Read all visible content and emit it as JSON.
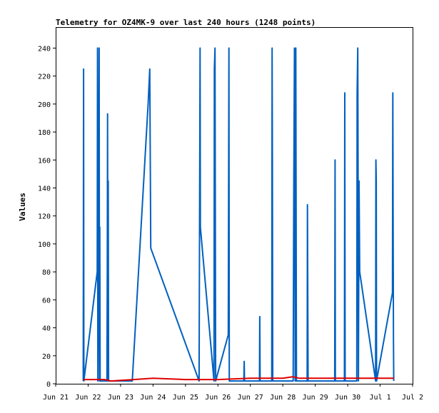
{
  "chart_data": {
    "type": "line",
    "title": "Telemetry for OZ4MK-9 over last 240 hours (1248 points)",
    "ylabel": "Values",
    "xlabel": "",
    "ylim": [
      0,
      255
    ],
    "xlim": [
      0,
      11
    ],
    "yticks": [
      0,
      20,
      40,
      60,
      80,
      100,
      120,
      140,
      160,
      180,
      200,
      220,
      240
    ],
    "xticks": [
      {
        "x": 0,
        "label": "Jun 21"
      },
      {
        "x": 1,
        "label": "Jun 22"
      },
      {
        "x": 2,
        "label": "Jun 23"
      },
      {
        "x": 3,
        "label": "Jun 24"
      },
      {
        "x": 4,
        "label": "Jun 25"
      },
      {
        "x": 5,
        "label": "Jun 26"
      },
      {
        "x": 6,
        "label": "Jun 27"
      },
      {
        "x": 7,
        "label": "Jun 28"
      },
      {
        "x": 8,
        "label": "Jun 29"
      },
      {
        "x": 9,
        "label": "Jun 30"
      },
      {
        "x": 10,
        "label": "Jul 1"
      },
      {
        "x": 11,
        "label": "Jul 2"
      }
    ],
    "grid": false,
    "series": [
      {
        "color": "#0060c0",
        "points": [
          [
            0.85,
            2
          ],
          [
            0.86,
            225
          ],
          [
            0.87,
            2
          ],
          [
            1.28,
            80
          ],
          [
            1.29,
            240
          ],
          [
            1.3,
            2
          ],
          [
            1.32,
            97
          ],
          [
            1.34,
            240
          ],
          [
            1.35,
            2
          ],
          [
            1.36,
            112
          ],
          [
            1.37,
            2
          ],
          [
            1.58,
            2
          ],
          [
            1.59,
            80
          ],
          [
            1.6,
            193
          ],
          [
            1.61,
            2
          ],
          [
            1.62,
            145
          ],
          [
            1.63,
            2
          ],
          [
            2.35,
            2
          ],
          [
            2.36,
            2
          ],
          [
            2.85,
            200
          ],
          [
            2.9,
            225
          ],
          [
            2.92,
            145
          ],
          [
            2.93,
            97
          ],
          [
            4.42,
            2
          ],
          [
            4.45,
            240
          ],
          [
            4.46,
            112
          ],
          [
            4.88,
            2
          ],
          [
            4.89,
            225
          ],
          [
            4.91,
            240
          ],
          [
            4.93,
            2
          ],
          [
            5.32,
            35
          ],
          [
            5.34,
            240
          ],
          [
            5.35,
            2
          ],
          [
            5.8,
            2
          ],
          [
            5.81,
            16
          ],
          [
            5.82,
            2
          ],
          [
            6.28,
            2
          ],
          [
            6.29,
            48
          ],
          [
            6.3,
            2
          ],
          [
            6.66,
            2
          ],
          [
            6.67,
            240
          ],
          [
            6.68,
            160
          ],
          [
            6.69,
            2
          ],
          [
            7.32,
            2
          ],
          [
            7.34,
            145
          ],
          [
            7.36,
            240
          ],
          [
            7.38,
            2
          ],
          [
            7.4,
            240
          ],
          [
            7.42,
            2
          ],
          [
            7.75,
            2
          ],
          [
            7.76,
            128
          ],
          [
            7.78,
            2
          ],
          [
            8.6,
            2
          ],
          [
            8.61,
            160
          ],
          [
            8.62,
            2
          ],
          [
            8.9,
            2
          ],
          [
            8.91,
            208
          ],
          [
            8.92,
            2
          ],
          [
            9.28,
            2
          ],
          [
            9.29,
            208
          ],
          [
            9.31,
            240
          ],
          [
            9.32,
            160
          ],
          [
            9.33,
            2
          ],
          [
            9.35,
            145
          ],
          [
            9.37,
            80
          ],
          [
            9.86,
            2
          ],
          [
            9.87,
            160
          ],
          [
            9.88,
            145
          ],
          [
            9.89,
            2
          ],
          [
            10.38,
            65
          ],
          [
            10.39,
            208
          ],
          [
            10.4,
            120
          ],
          [
            10.41,
            32
          ],
          [
            10.42,
            2
          ]
        ]
      },
      {
        "color": "#e00000",
        "points": [
          [
            0.85,
            3
          ],
          [
            1.5,
            3
          ],
          [
            1.7,
            2
          ],
          [
            2.4,
            3
          ],
          [
            3.0,
            4
          ],
          [
            4.0,
            3
          ],
          [
            4.5,
            3
          ],
          [
            5.0,
            3
          ],
          [
            6.0,
            4
          ],
          [
            7.0,
            4
          ],
          [
            7.3,
            5
          ],
          [
            7.5,
            4
          ],
          [
            8.0,
            4
          ],
          [
            9.0,
            4
          ],
          [
            10.0,
            4
          ],
          [
            10.42,
            4
          ]
        ]
      }
    ]
  }
}
